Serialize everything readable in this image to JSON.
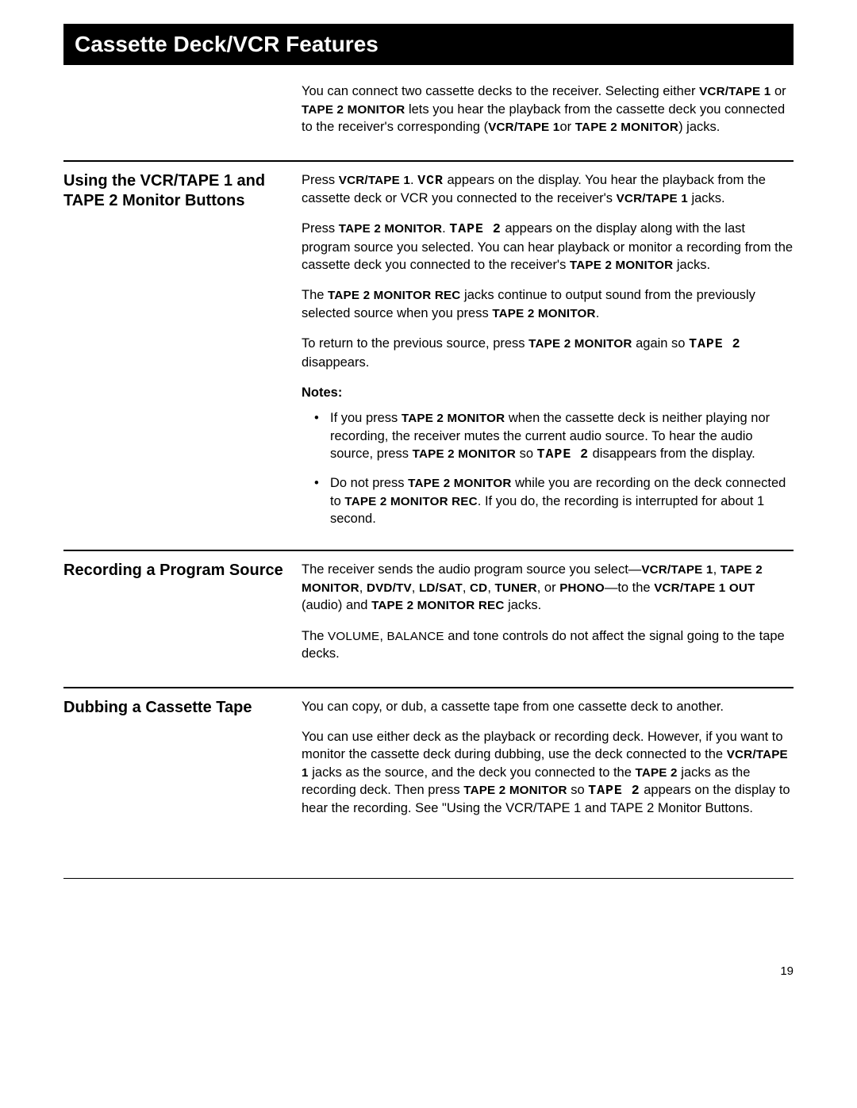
{
  "document": {
    "page_number": "19",
    "title": "Cassette Deck/VCR Features",
    "font_family": "Arial, Helvetica, sans-serif",
    "colors": {
      "title_bg": "#000000",
      "title_fg": "#ffffff",
      "body_bg": "#ffffff",
      "text": "#000000",
      "rule": "#000000"
    },
    "intro": {
      "t1": "You can connect two cassette decks to the receiver. Selecting either ",
      "k1": "VCR/TAPE 1",
      "t2": " or ",
      "k2": "TAPE 2 MONITOR",
      "t3": " lets you hear the playback from the cassette deck you connected to the receiver's corresponding (",
      "k3": "VCR/TAPE 1",
      "t4": "or ",
      "k4": "TAPE 2 MONITOR",
      "t5": ") jacks."
    },
    "sec1": {
      "heading": "Using the VCR/TAPE 1 and TAPE 2 Monitor Buttons",
      "p1": {
        "a": "Press ",
        "k1": "VCR/TAPE 1",
        "b": ". ",
        "d1": "VCR",
        "c": " appears on the display. You hear the playback from the cassette deck or VCR you connected to the receiver's ",
        "k2": "VCR/TAPE 1",
        "d": " jacks."
      },
      "p2": {
        "a": "Press ",
        "k1": "TAPE 2 MONITOR",
        "b": ". ",
        "d1": "TAPE 2",
        "c": " appears on the display along with the last program source you selected. You can hear playback or monitor a recording from the cassette deck you connected to the receiver's ",
        "k2": "TAPE 2 MONITOR",
        "d": " jacks."
      },
      "p3": {
        "a": "The ",
        "k1": "TAPE 2 MONITOR REC",
        "b": " jacks continue to output sound from the previously selected source when you press ",
        "k2": "TAPE 2 MONITOR",
        "c": "."
      },
      "p4": {
        "a": "To return to the previous source, press ",
        "k1": "TAPE 2 MONITOR",
        "b": " again so ",
        "d1": "TAPE 2",
        "c": " disappears."
      },
      "notes_label": "Notes:",
      "n1": {
        "a": "If you press ",
        "k1": "TAPE 2 MONITOR",
        "b": " when the cassette deck is neither playing nor recording, the receiver mutes the current audio source. To hear the audio source, press ",
        "k2": "TAPE 2 MONITOR",
        "c": " so ",
        "d1": "TAPE 2",
        "d": " disappears from the display."
      },
      "n2": {
        "a": "Do not press ",
        "k1": "TAPE 2 MONITOR",
        "b": " while you are recording on the deck connected to ",
        "k2": "TAPE 2 MONITOR REC",
        "c": ". If you do, the recording is interrupted for about 1 second."
      }
    },
    "sec2": {
      "heading": "Recording a Program Source",
      "p1": {
        "a": "The receiver sends the audio program source you select—",
        "k1": "VCR/TAPE 1",
        "s1": ", ",
        "k2": "TAPE 2 MONITOR",
        "s2": ", ",
        "k3": "DVD/TV",
        "s3": ", ",
        "k4": "LD/SAT",
        "s4": ", ",
        "k5": "CD",
        "s5": ", ",
        "k6": "TUNER",
        "s6": ", or ",
        "k7": "PHONO",
        "b": "—to the ",
        "k8": "VCR/TAPE 1 OUT",
        "c": " (audio) and ",
        "k9": "TAPE 2 MONITOR REC",
        "d": " jacks."
      },
      "p2": {
        "a": "The ",
        "k1": "VOLUME",
        "s1": ", ",
        "k2": "BALANCE",
        "b": " and tone controls do not affect the signal going to the tape decks."
      }
    },
    "sec3": {
      "heading": "Dubbing a Cassette Tape",
      "p1": "You can copy, or dub, a cassette tape from one cassette deck to another.",
      "p2": {
        "a": "You can use either deck as the playback or recording deck. However, if you want to monitor the cassette deck during dubbing, use the deck connected to the ",
        "k1": "VCR/TAPE 1",
        "b": " jacks as the source, and the deck you connected to the ",
        "k2": "TAPE 2",
        "c": " jacks as the recording deck. Then press ",
        "k3": "TAPE 2 MONITOR",
        "d": " so ",
        "d1": "TAPE 2",
        "e": " appears on the display to hear the recording. See \"Using the VCR/TAPE 1 and TAPE 2 Monitor Buttons."
      }
    }
  }
}
